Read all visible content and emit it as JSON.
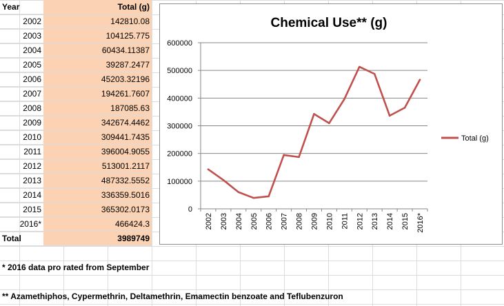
{
  "table": {
    "header": {
      "year": "Year",
      "total": "Total (g)"
    },
    "rows": [
      {
        "year": "2002",
        "total": "142810.08"
      },
      {
        "year": "2003",
        "total": "104125.775"
      },
      {
        "year": "2004",
        "total": "60434.11387"
      },
      {
        "year": "2005",
        "total": "39287.2477"
      },
      {
        "year": "2006",
        "total": "45203.32196"
      },
      {
        "year": "2007",
        "total": "194261.7607"
      },
      {
        "year": "2008",
        "total": "187085.63"
      },
      {
        "year": "2009",
        "total": "342674.4462"
      },
      {
        "year": "2010",
        "total": "309441.7435"
      },
      {
        "year": "2011",
        "total": "396004.9055"
      },
      {
        "year": "2012",
        "total": "513001.2117"
      },
      {
        "year": "2013",
        "total": "487332.5552"
      },
      {
        "year": "2014",
        "total": "336359.5016"
      },
      {
        "year": "2015",
        "total": "365302.0173"
      },
      {
        "year": "2016*",
        "total": "466424.3"
      }
    ],
    "total_label": "Total",
    "total_value": "3989749"
  },
  "notes": [
    "* 2016 data pro rated from September",
    "** Azamethiphos, Cypermethrin, Deltamethrin, Emamectin benzoate and Teflubenzuron"
  ],
  "chart_data": {
    "type": "line",
    "title": "Chemical Use** (g)",
    "categories": [
      "2002",
      "2003",
      "2004",
      "2005",
      "2006",
      "2007",
      "2008",
      "2009",
      "2010",
      "2011",
      "2012",
      "2013",
      "2014",
      "2015",
      "2016*"
    ],
    "series": [
      {
        "name": "Total (g)",
        "color": "#c0504d",
        "values": [
          142810.08,
          104125.775,
          60434.11387,
          39287.2477,
          45203.32196,
          194261.7607,
          187085.63,
          342674.4462,
          309441.7435,
          396004.9055,
          513001.2117,
          487332.5552,
          336359.5016,
          365302.0173,
          466424.3
        ]
      }
    ],
    "ylim": [
      0,
      600000
    ],
    "yticks": [
      "0",
      "100000",
      "200000",
      "300000",
      "400000",
      "500000",
      "600000"
    ],
    "grid": true,
    "legend": "right"
  }
}
